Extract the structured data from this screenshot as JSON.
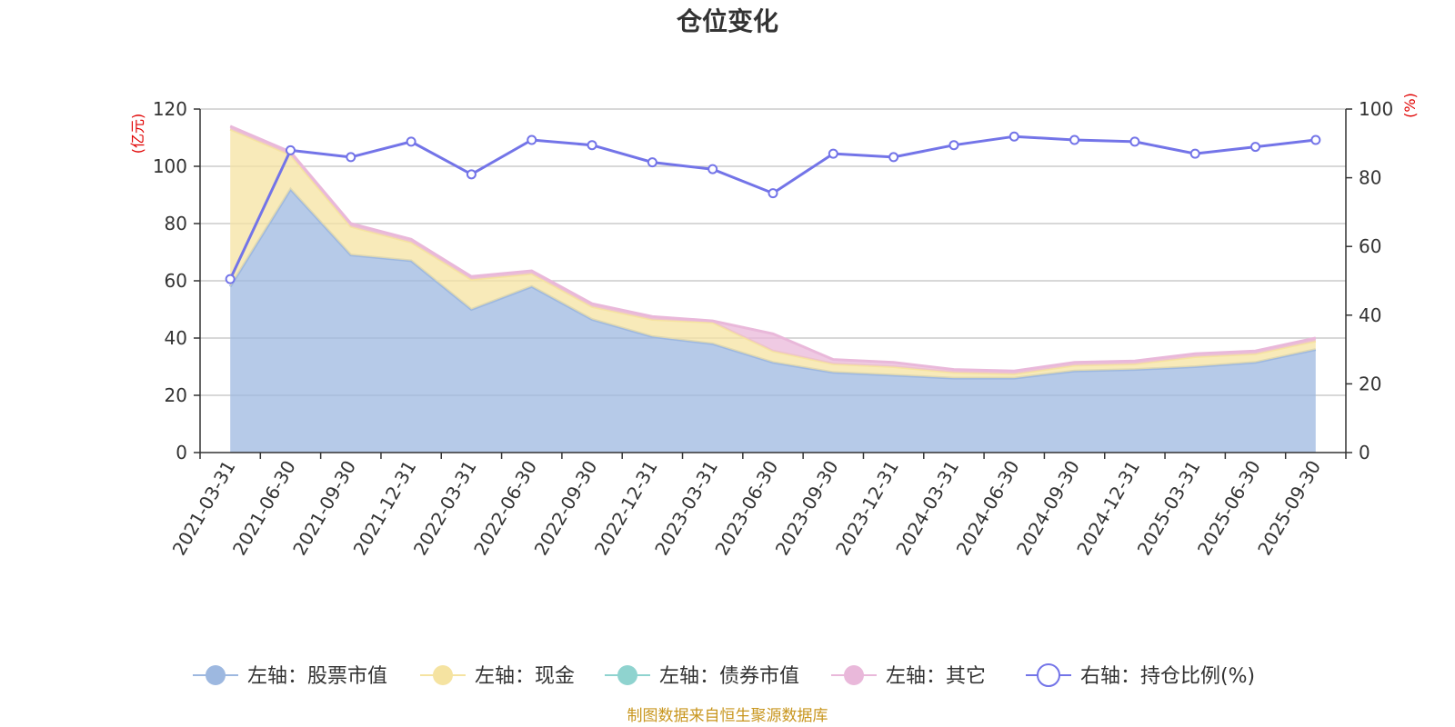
{
  "chart_data": {
    "type": "area",
    "title": "仓位变化",
    "left_axis": {
      "unit": "(亿元)",
      "ylim": [
        0,
        120
      ],
      "ticks": [
        0,
        20,
        40,
        60,
        80,
        100,
        120
      ]
    },
    "right_axis": {
      "unit": "(%)",
      "ylim": [
        0,
        100
      ],
      "ticks": [
        0,
        20,
        40,
        60,
        80,
        100
      ]
    },
    "categories": [
      "2021-03-31",
      "2021-06-30",
      "2021-09-30",
      "2021-12-31",
      "2022-03-31",
      "2022-06-30",
      "2022-09-30",
      "2022-12-31",
      "2023-03-31",
      "2023-06-30",
      "2023-09-30",
      "2023-12-31",
      "2024-03-31",
      "2024-06-30",
      "2024-09-30",
      "2024-12-31",
      "2025-03-31",
      "2025-06-30",
      "2025-09-30"
    ],
    "series": [
      {
        "name": "左轴：股票市值",
        "axis": "left",
        "stack": true,
        "color": "#9db8e0",
        "values": [
          58,
          92,
          69,
          67,
          50,
          58,
          46.5,
          40.5,
          38,
          31.5,
          28,
          27,
          26,
          26,
          28.5,
          29,
          30,
          31.5,
          36
        ]
      },
      {
        "name": "左轴：现金",
        "axis": "left",
        "stack": true,
        "color": "#f5e3a1",
        "values": [
          55,
          12,
          10,
          6.5,
          10.5,
          4.5,
          4.5,
          6,
          7.5,
          4,
          3,
          3,
          2,
          1.5,
          2,
          2,
          3.5,
          3,
          3
        ]
      },
      {
        "name": "左轴：债券市值",
        "axis": "left",
        "stack": true,
        "color": "#8fd3cf",
        "values": [
          0,
          0,
          0,
          0,
          0,
          0,
          0,
          0,
          0,
          0,
          0,
          0,
          0,
          0,
          0,
          0,
          0,
          0,
          0
        ]
      },
      {
        "name": "左轴：其它",
        "axis": "left",
        "stack": true,
        "color": "#e9b8da",
        "values": [
          1,
          1,
          1,
          1,
          1,
          1,
          1,
          1,
          0.5,
          6,
          1.5,
          1.5,
          1,
          1,
          1,
          1,
          1,
          1,
          1
        ]
      },
      {
        "name": "右轴：持仓比例(%)",
        "axis": "right",
        "stack": false,
        "color": "#7374e8",
        "values": [
          50.5,
          88,
          86,
          90.5,
          81,
          91,
          89.5,
          84.5,
          82.5,
          75.5,
          87,
          86,
          89.5,
          92,
          91,
          90.5,
          87,
          89,
          91
        ]
      }
    ],
    "source": "制图数据来自恒生聚源数据库"
  }
}
